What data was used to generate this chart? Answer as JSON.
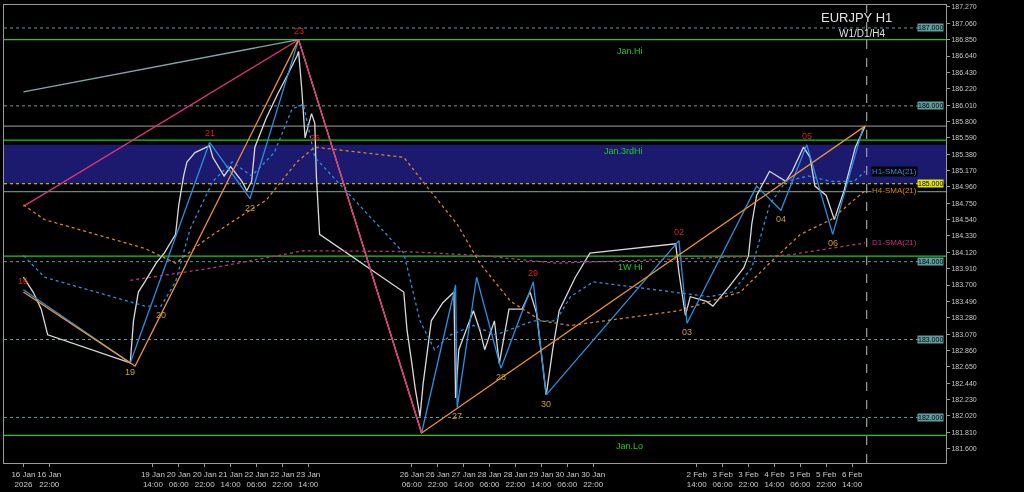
{
  "chart_data": {
    "type": "line",
    "title": "EURJPY H1",
    "subtitle": "W1/D1/H4",
    "xlim": [
      "2026-01-15T18:00",
      "2026-02-09T00:00"
    ],
    "ylim": [
      181.415,
      187.295
    ],
    "xticks": [
      {
        "value": "2026-01-16T06:00",
        "label": "16 Jan 2026"
      },
      {
        "value": "2026-01-16T22:00",
        "label": "16 Jan 22:00"
      },
      {
        "value": "2026-01-19T14:00",
        "label": "19 Jan 14:00"
      },
      {
        "value": "2026-01-20T06:00",
        "label": "20 Jan 06:00"
      },
      {
        "value": "2026-01-20T22:00",
        "label": "20 Jan 22:00"
      },
      {
        "value": "2026-01-21T14:00",
        "label": "21 Jan 14:00"
      },
      {
        "value": "2026-01-22T06:00",
        "label": "22 Jan 06:00"
      },
      {
        "value": "2026-01-22T22:00",
        "label": "22 Jan 22:00"
      },
      {
        "value": "2026-01-23T14:00",
        "label": "23 Jan 14:00"
      },
      {
        "value": "2026-01-26T06:00",
        "label": "26 Jan 06:00"
      },
      {
        "value": "2026-01-26T22:00",
        "label": "26 Jan 22:00"
      },
      {
        "value": "2026-01-27T14:00",
        "label": "27 Jan 14:00"
      },
      {
        "value": "2026-01-28T06:00",
        "label": "28 Jan 06:00"
      },
      {
        "value": "2026-01-28T22:00",
        "label": "28 Jan 22:00"
      },
      {
        "value": "2026-01-29T14:00",
        "label": "29 Jan 14:00"
      },
      {
        "value": "2026-01-30T06:00",
        "label": "30 Jan 06:00"
      },
      {
        "value": "2026-01-30T22:00",
        "label": "30 Jan 22:00"
      },
      {
        "value": "2026-02-02T14:00",
        "label": "2 Feb 14:00"
      },
      {
        "value": "2026-02-03T06:00",
        "label": "3 Feb 06:00"
      },
      {
        "value": "2026-02-03T22:00",
        "label": "3 Feb 22:00"
      },
      {
        "value": "2026-02-04T14:00",
        "label": "4 Feb 14:00"
      },
      {
        "value": "2026-02-05T06:00",
        "label": "5 Feb 06:00"
      },
      {
        "value": "2026-02-05T22:00",
        "label": "5 Feb 22:00"
      },
      {
        "value": "2026-02-06T14:00",
        "label": "6 Feb 14:00"
      }
    ],
    "yticks": [
      {
        "value": 181.6,
        "label": "181.600"
      },
      {
        "value": 181.81,
        "label": "181.810"
      },
      {
        "value": 182.02,
        "label": "182.020"
      },
      {
        "value": 182.23,
        "label": "182.230"
      },
      {
        "value": 182.44,
        "label": "182.440"
      },
      {
        "value": 182.65,
        "label": "182.650"
      },
      {
        "value": 182.86,
        "label": "182.860"
      },
      {
        "value": 183.07,
        "label": "183.070"
      },
      {
        "value": 183.28,
        "label": "183.280"
      },
      {
        "value": 183.49,
        "label": "183.490"
      },
      {
        "value": 183.7,
        "label": "183.700"
      },
      {
        "value": 183.91,
        "label": "183.910"
      },
      {
        "value": 184.12,
        "label": "184.120"
      },
      {
        "value": 184.33,
        "label": "184.330"
      },
      {
        "value": 184.54,
        "label": "184.540"
      },
      {
        "value": 184.75,
        "label": "184.750"
      },
      {
        "value": 184.96,
        "label": "184.960"
      },
      {
        "value": 185.17,
        "label": "185.170"
      },
      {
        "value": 185.38,
        "label": "185.380"
      },
      {
        "value": 185.59,
        "label": "185.590"
      },
      {
        "value": 185.8,
        "label": "185.800"
      },
      {
        "value": 186.01,
        "label": "186.010"
      },
      {
        "value": 186.22,
        "label": "186.220"
      },
      {
        "value": 186.43,
        "label": "186.430"
      },
      {
        "value": 186.64,
        "label": "186.640"
      },
      {
        "value": 186.85,
        "label": "186.850"
      },
      {
        "value": 187.06,
        "label": "187.060"
      },
      {
        "value": 187.27,
        "label": "187.270"
      }
    ],
    "grid": false,
    "legend": false,
    "series": [
      {
        "color": "#d9d9d9",
        "line_style": "solid",
        "x": [
          "2026-01-16T06:00",
          "2026-01-16T12:00",
          "2026-01-16T17:00",
          "2026-01-16T21:00",
          "2026-01-19T00:00",
          "2026-01-19T02:00",
          "2026-01-19T05:00",
          "2026-01-19T09:00",
          "2026-01-19T16:00",
          "2026-01-19T21:00",
          "2026-01-20T04:00",
          "2026-01-20T06:00",
          "2026-01-20T09:00",
          "2026-01-20T11:00",
          "2026-01-20T16:00",
          "2026-01-21T01:00",
          "2026-01-21T03:00",
          "2026-01-21T10:00",
          "2026-01-21T14:00",
          "2026-01-21T21:00",
          "2026-01-22T00:00",
          "2026-01-22T03:00",
          "2026-01-22T05:00",
          "2026-01-22T12:00",
          "2026-01-22T19:00",
          "2026-01-23T01:00",
          "2026-01-23T07:00",
          "2026-01-23T08:00",
          "2026-01-23T10:00",
          "2026-01-23T12:00",
          "2026-01-23T16:00",
          "2026-01-23T18:00",
          "2026-01-23T19:00",
          "2026-01-23T21:00",
          "2026-01-26T01:00",
          "2026-01-26T03:00",
          "2026-01-26T06:00",
          "2026-01-26T08:00",
          "2026-01-26T11:00",
          "2026-01-26T13:00",
          "2026-01-26T18:00",
          "2026-01-27T01:00",
          "2026-01-27T08:00",
          "2026-01-27T09:00",
          "2026-01-27T11:00",
          "2026-01-27T20:00",
          "2026-01-28T00:00",
          "2026-01-28T03:00",
          "2026-01-28T09:00",
          "2026-01-28T12:00",
          "2026-01-28T18:00",
          "2026-01-29T02:00",
          "2026-01-29T07:00",
          "2026-01-29T11:00",
          "2026-01-29T17:00",
          "2026-01-29T21:00",
          "2026-01-30T01:00",
          "2026-01-30T11:00",
          "2026-01-30T20:00",
          "2026-02-02T01:00",
          "2026-02-02T03:00",
          "2026-02-02T07:00",
          "2026-02-02T10:00",
          "2026-02-02T20:00",
          "2026-02-03T00:00",
          "2026-02-03T10:00",
          "2026-02-03T19:00",
          "2026-02-03T22:00",
          "2026-02-04T00:00",
          "2026-02-04T03:00",
          "2026-02-04T11:00",
          "2026-02-04T21:00",
          "2026-02-05T01:00",
          "2026-02-05T08:00",
          "2026-02-05T12:00",
          "2026-02-05T15:00",
          "2026-02-05T22:00",
          "2026-02-06T03:00",
          "2026-02-06T09:00",
          "2026-02-06T16:00",
          "2026-02-06T22:00"
        ],
        "values": [
          183.8,
          183.61,
          183.39,
          183.06,
          182.7,
          183.24,
          183.61,
          183.74,
          183.98,
          184.11,
          184.35,
          184.73,
          185.1,
          185.28,
          185.4,
          185.49,
          185.34,
          185.1,
          185.22,
          185.03,
          184.91,
          185.03,
          185.47,
          185.84,
          186.15,
          186.39,
          186.64,
          186.7,
          186.21,
          185.59,
          185.9,
          185.78,
          185.1,
          184.35,
          183.61,
          183.12,
          182.69,
          182.38,
          182.01,
          182.44,
          183.24,
          183.47,
          183.61,
          182.25,
          182.87,
          183.37,
          183.12,
          182.87,
          183.24,
          182.69,
          183.39,
          183.39,
          183.61,
          183.34,
          182.29,
          182.87,
          183.37,
          183.8,
          184.11,
          184.23,
          183.86,
          183.31,
          183.55,
          183.49,
          183.43,
          183.68,
          183.92,
          184.08,
          184.48,
          184.85,
          185.16,
          185.03,
          185.16,
          185.47,
          185.34,
          184.97,
          184.85,
          184.54,
          184.91,
          185.47,
          185.74
        ]
      },
      {
        "color": "#2a8fe0",
        "line_style": "solid",
        "x": [
          "2026-01-16T06:00",
          "2026-01-19T00:00",
          "2026-01-21T01:00",
          "2026-01-22T02:00",
          "2026-01-23T08:00",
          "2026-01-26T12:00",
          "2026-01-27T09:00",
          "2026-01-27T10:00",
          "2026-01-27T22:00",
          "2026-01-28T13:00",
          "2026-01-29T09:00",
          "2026-01-29T17:00",
          "2026-02-02T03:00",
          "2026-02-02T08:00",
          "2026-02-04T03:00",
          "2026-02-04T18:00",
          "2026-02-05T10:00",
          "2026-02-06T02:00",
          "2026-02-06T21:00"
        ],
        "values": [
          183.64,
          182.7,
          185.53,
          184.81,
          186.85,
          181.8,
          183.7,
          182.13,
          183.8,
          182.63,
          183.74,
          182.29,
          184.27,
          183.21,
          184.97,
          184.66,
          185.5,
          184.35,
          185.74
        ]
      },
      {
        "color": "#f0932b",
        "line_style": "solid",
        "x": [
          "2026-01-16T06:00",
          "2026-01-19T03:00",
          "2026-01-23T08:00",
          "2026-01-26T12:00",
          "2026-02-06T22:00"
        ],
        "values": [
          183.61,
          182.66,
          186.85,
          181.8,
          185.74
        ]
      },
      {
        "color": "#e0337a",
        "line_style": "solid",
        "x": [
          "2026-01-16T06:00",
          "2026-01-23T08:00",
          "2026-01-26T12:00"
        ],
        "values": [
          184.71,
          186.85,
          181.8
        ]
      },
      {
        "color": "#7fa8a8",
        "line_style": "solid",
        "x": [
          "2026-01-16T06:00",
          "2026-01-23T08:00"
        ],
        "values": [
          186.18,
          186.85
        ]
      },
      {
        "name": "H1-SMA(21)",
        "color": "#2a8fe0",
        "line_style": "dotted",
        "x": [
          "2026-01-16T06:00",
          "2026-01-16T19:00",
          "2026-01-19T09:00",
          "2026-01-19T19:00",
          "2026-01-20T04:00",
          "2026-01-20T13:00",
          "2026-01-21T03:00",
          "2026-01-21T15:00",
          "2026-01-22T03:00",
          "2026-01-22T17:00",
          "2026-01-23T04:00",
          "2026-01-23T11:00",
          "2026-01-23T18:00",
          "2026-01-26T01:00",
          "2026-01-26T11:00",
          "2026-01-26T20:00",
          "2026-01-27T06:00",
          "2026-01-27T20:00",
          "2026-01-28T10:00",
          "2026-01-29T09:00",
          "2026-01-29T23:00",
          "2026-01-30T08:00",
          "2026-01-30T22:00",
          "2026-02-02T22:00",
          "2026-02-03T12:00",
          "2026-02-04T00:00",
          "2026-02-04T11:00",
          "2026-02-04T21:00",
          "2026-02-05T11:00",
          "2026-02-06T01:00",
          "2026-02-06T15:00",
          "2026-02-06T22:00"
        ],
        "values": [
          184.08,
          183.8,
          183.43,
          183.43,
          183.74,
          184.42,
          185.03,
          185.28,
          185.1,
          185.4,
          185.96,
          186.02,
          185.34,
          184.11,
          183.24,
          182.87,
          183.06,
          183.18,
          183.06,
          183.24,
          183.24,
          183.55,
          183.74,
          183.55,
          183.61,
          183.92,
          184.73,
          185.03,
          185.1,
          185.03,
          185.03,
          185.16
        ]
      },
      {
        "name": "H4-SMA(21)",
        "color": "#d9822b",
        "line_style": "dotted",
        "x": [
          "2026-01-16T06:00",
          "2026-01-16T19:00",
          "2026-01-19T09:00",
          "2026-01-20T04:00",
          "2026-01-20T23:00",
          "2026-01-21T17:00",
          "2026-01-22T12:00",
          "2026-01-23T07:00",
          "2026-01-23T18:00",
          "2026-01-26T01:00",
          "2026-01-26T15:00",
          "2026-01-27T10:00",
          "2026-01-28T00:00",
          "2026-01-28T19:00",
          "2026-01-29T14:00",
          "2026-01-30T08:00",
          "2026-02-02T03:00",
          "2026-02-02T22:00",
          "2026-02-03T17:00",
          "2026-02-04T11:00",
          "2026-02-05T06:00",
          "2026-02-06T01:00",
          "2026-02-06T15:00",
          "2026-02-06T22:00"
        ],
        "values": [
          184.73,
          184.54,
          184.17,
          183.98,
          184.29,
          184.54,
          184.79,
          185.28,
          185.47,
          185.34,
          184.97,
          184.48,
          183.98,
          183.49,
          183.24,
          183.18,
          183.37,
          183.49,
          183.61,
          183.98,
          184.35,
          184.54,
          184.79,
          184.91
        ]
      },
      {
        "name": "D1-SMA(21)",
        "color": "#c2307f",
        "line_style": "dotted",
        "x": [
          "2026-01-19T00:00",
          "2026-01-21T03:00",
          "2026-01-23T11:00",
          "2026-01-26T01:00",
          "2026-01-28T00:00",
          "2026-01-29T23:00",
          "2026-02-02T22:00",
          "2026-02-04T21:00",
          "2026-02-06T22:00"
        ],
        "values": [
          183.76,
          183.92,
          184.14,
          184.13,
          184.08,
          183.98,
          184.05,
          184.08,
          184.24
        ]
      }
    ],
    "bands": [
      {
        "axis": "y",
        "from": 185.0,
        "to": 185.5,
        "color": "#1c1a6e"
      }
    ],
    "ref_lines": [
      {
        "axis": "y",
        "value": 186.85,
        "label": "Jan.Hi",
        "color": "#22c822",
        "line_style": "solid"
      },
      {
        "axis": "y",
        "value": 185.56,
        "label": "Jan.3rdHi",
        "color": "#22c822",
        "line_style": "solid"
      },
      {
        "axis": "y",
        "value": 184.07,
        "label": "1W Hi",
        "color": "#22c822",
        "line_style": "solid"
      },
      {
        "axis": "y",
        "value": 181.77,
        "label": "Jan.Lo",
        "color": "#22c822",
        "line_style": "solid"
      },
      {
        "axis": "y",
        "value": 185.74,
        "color": "#808080",
        "line_style": "solid"
      },
      {
        "axis": "y",
        "value": 184.9,
        "color": "#5f8a8a",
        "line_style": "solid"
      },
      {
        "axis": "y",
        "value": 187.0,
        "label": "187.000",
        "color": "#5f9ea0",
        "line_style": "dotted"
      },
      {
        "axis": "y",
        "value": 186.0,
        "label": "186.000",
        "color": "#5f9ea0",
        "line_style": "dotted"
      },
      {
        "axis": "y",
        "value": 185.0,
        "label": "185.000",
        "color": "#e6e600",
        "line_style": "dotted"
      },
      {
        "axis": "y",
        "value": 184.0,
        "label": "184.000",
        "color": "#5f9ea0",
        "line_style": "dotted"
      },
      {
        "axis": "y",
        "value": 183.0,
        "label": "183.000",
        "color": "#5f9ea0",
        "line_style": "dotted"
      },
      {
        "axis": "y",
        "value": 182.0,
        "label": "182.000",
        "color": "#5f9ea0",
        "line_style": "dotted"
      },
      {
        "axis": "x",
        "value": "2026-02-06T23:00",
        "color": "#a0a0a0",
        "line_style": "dashed"
      }
    ],
    "annotations": [
      {
        "text": "16",
        "x": "2026-01-16T06:00",
        "y": 183.64
      },
      {
        "text": "19",
        "x": "2026-01-19T00:00",
        "y": 182.7
      },
      {
        "text": "20",
        "x": "2026-01-19T19:00",
        "y": 183.43
      },
      {
        "text": "21",
        "x": "2026-01-21T01:00",
        "y": 185.53
      },
      {
        "text": "22",
        "x": "2026-01-22T02:00",
        "y": 184.81
      },
      {
        "text": "23",
        "x": "2026-01-23T08:00",
        "y": 186.85
      },
      {
        "text": "26",
        "x": "2026-01-23T18:00",
        "y": 185.47
      },
      {
        "text": "27",
        "x": "2026-01-27T10:00",
        "y": 182.13
      },
      {
        "text": "28",
        "x": "2026-01-28T13:00",
        "y": 182.63
      },
      {
        "text": "29",
        "x": "2026-01-29T09:00",
        "y": 183.74
      },
      {
        "text": "30",
        "x": "2026-01-29T17:00",
        "y": 182.29
      },
      {
        "text": "02",
        "x": "2026-02-02T03:00",
        "y": 184.27
      },
      {
        "text": "03",
        "x": "2026-02-02T08:00",
        "y": 183.21
      },
      {
        "text": "04",
        "x": "2026-02-04T18:00",
        "y": 184.66
      },
      {
        "text": "05",
        "x": "2026-02-05T10:00",
        "y": 185.5
      },
      {
        "text": "06",
        "x": "2026-02-06T02:00",
        "y": 184.35
      }
    ]
  }
}
